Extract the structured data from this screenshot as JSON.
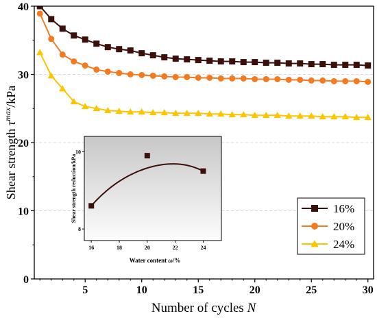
{
  "chart_data": [
    {
      "type": "line",
      "xlabel": "Number of cycles",
      "xlabel_symbol": "N",
      "ylabel": "Shear strength",
      "ylabel_symbol": "τ",
      "ylabel_superscript": "max",
      "ylabel_unit": "/kPa",
      "xlim": [
        0.5,
        30.5
      ],
      "ylim": [
        0,
        40
      ],
      "xticks": [
        "5",
        "10",
        "15",
        "20",
        "25",
        "30"
      ],
      "yticks": [
        "0",
        "10",
        "20",
        "30",
        "40"
      ],
      "grid": "horizontal dashed",
      "legend_position": "bottom-right",
      "x": [
        1,
        2,
        3,
        4,
        5,
        6,
        7,
        8,
        9,
        10,
        11,
        12,
        13,
        14,
        15,
        16,
        17,
        18,
        19,
        20,
        21,
        22,
        23,
        24,
        25,
        26,
        27,
        28,
        29,
        30
      ],
      "series": [
        {
          "name": "16%",
          "marker": "square",
          "color": "#3b0f0a",
          "values": [
            40.0,
            38.1,
            36.7,
            35.7,
            35.1,
            34.5,
            34.0,
            33.7,
            33.5,
            33.1,
            32.8,
            32.5,
            32.3,
            32.2,
            32.1,
            32.0,
            31.9,
            31.9,
            31.8,
            31.8,
            31.7,
            31.7,
            31.6,
            31.6,
            31.5,
            31.5,
            31.4,
            31.4,
            31.4,
            31.3
          ]
        },
        {
          "name": "20%",
          "marker": "circle",
          "color": "#f47a20",
          "values": [
            38.9,
            35.2,
            32.9,
            31.9,
            31.3,
            30.7,
            30.4,
            30.2,
            30.0,
            29.9,
            29.8,
            29.7,
            29.6,
            29.6,
            29.5,
            29.5,
            29.4,
            29.4,
            29.4,
            29.3,
            29.3,
            29.3,
            29.2,
            29.2,
            29.1,
            29.1,
            29.0,
            29.0,
            29.0,
            28.9
          ]
        },
        {
          "name": "24%",
          "marker": "triangle",
          "color": "#fdc400",
          "values": [
            33.2,
            29.8,
            27.9,
            26.0,
            25.3,
            25.0,
            24.7,
            24.6,
            24.5,
            24.5,
            24.4,
            24.4,
            24.3,
            24.3,
            24.3,
            24.2,
            24.2,
            24.1,
            24.1,
            24.0,
            24.0,
            24.0,
            23.9,
            23.9,
            23.9,
            23.8,
            23.8,
            23.8,
            23.7,
            23.7
          ]
        }
      ]
    },
    {
      "type": "scatter",
      "inset": true,
      "xlabel": "Water content",
      "xlabel_symbol": "ω",
      "xlabel_unit": "/%",
      "ylabel": "Shear strength reduction/kPa",
      "xlim": [
        15.5,
        25.3
      ],
      "ylim": [
        7.7,
        10.4
      ],
      "xticks": [
        "16",
        "18",
        "20",
        "22",
        "24"
      ],
      "yticks": [
        "8",
        "10"
      ],
      "background": "gradient-grey",
      "x": [
        16,
        20,
        24
      ],
      "values": [
        8.6,
        9.9,
        9.5
      ],
      "marker": "square",
      "color": "#3b0f0a",
      "fit_curve": true
    }
  ]
}
